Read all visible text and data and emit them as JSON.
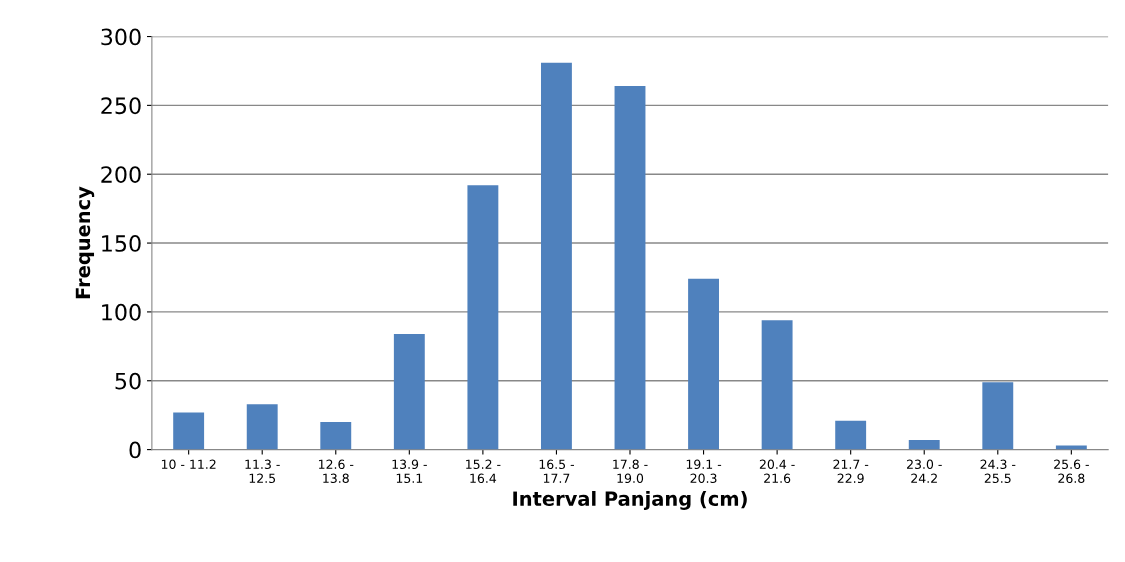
{
  "chart_data": {
    "type": "bar",
    "xlabel": "Interval Panjang (cm)",
    "ylabel": "Frequency",
    "categories": [
      "10 - 11.2",
      "11.3 -\n12.5",
      "12.6 -\n13.8",
      "13.9 -\n15.1",
      "15.2 -\n16.4",
      "16.5 -\n17.7",
      "17.8 -\n19.0",
      "19.1 -\n20.3",
      "20.4 -\n21.6",
      "21.7 -\n22.9",
      "23.0 -\n24.2",
      "24.3 -\n25.5",
      "25.6 -\n26.8"
    ],
    "values": [
      27,
      33,
      20,
      84,
      192,
      281,
      264,
      124,
      94,
      21,
      7,
      49,
      3
    ],
    "color": "#4f81bd",
    "ylim": [
      0,
      300
    ],
    "yticks": [
      0,
      50,
      100,
      150,
      200,
      250,
      300
    ],
    "grid": "y"
  }
}
